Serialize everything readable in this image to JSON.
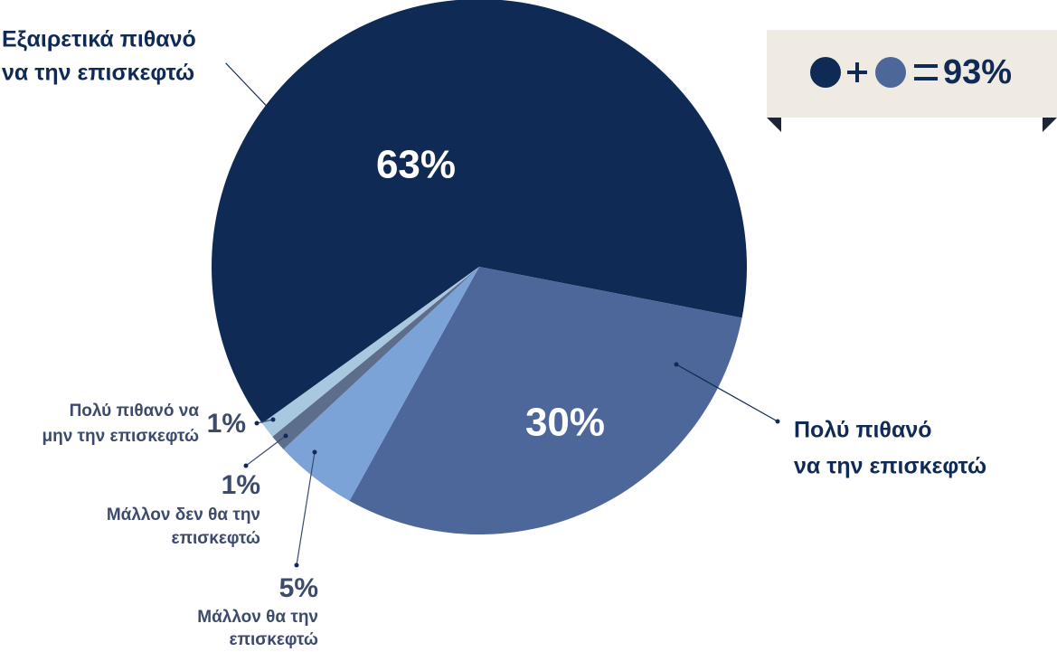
{
  "chart_data": {
    "type": "pie",
    "categories": [
      [
        "Εξαιρετικά πιθανό",
        "να την επισκεφτώ"
      ],
      [
        "Πολύ πιθανό",
        "να την επισκεφτώ"
      ],
      [
        "Μάλλον θα την",
        "επισκεφτώ"
      ],
      [
        "Μάλλον δεν θα την",
        "επισκεφτώ"
      ],
      [
        "Πολύ πιθανό να",
        "μην την επισκεφτώ"
      ]
    ],
    "values": [
      63,
      30,
      5,
      1,
      1
    ],
    "value_labels": [
      "63%",
      "30%",
      "5%",
      "1%",
      "1%"
    ],
    "colors": [
      "#0f2a55",
      "#4d679b",
      "#7ba3d8",
      "#5d6e8c",
      "#a8c8e0"
    ],
    "summary": "93%"
  }
}
